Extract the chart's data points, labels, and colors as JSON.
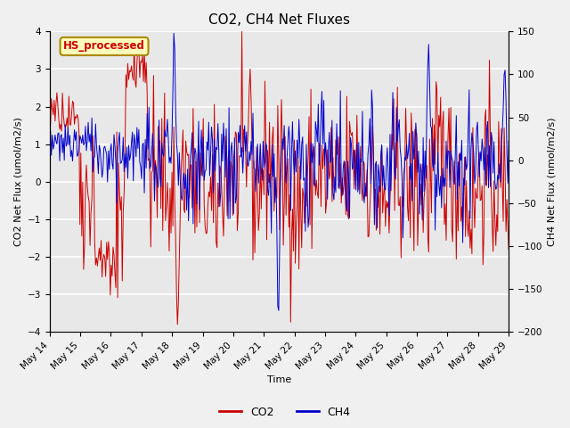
{
  "title": "CO2, CH4 Net Fluxes",
  "xlabel": "Time",
  "ylabel_left": "CO2 Net Flux (umol/m2/s)",
  "ylabel_right": "CH4 Net Flux (nmol/m2/s)",
  "ylim_left": [
    -4.0,
    4.0
  ],
  "ylim_right": [
    -200,
    150
  ],
  "yticks_left": [
    -4.0,
    -3.0,
    -2.0,
    -1.0,
    0.0,
    1.0,
    2.0,
    3.0,
    4.0
  ],
  "yticks_right": [
    -200,
    -150,
    -100,
    -50,
    0,
    50,
    100,
    150
  ],
  "x_tick_labels": [
    "May 14",
    "May 15",
    "May 16",
    "May 17",
    "May 18",
    "May 19",
    "May 20",
    "May 21",
    "May 22",
    "May 23",
    "May 24",
    "May 25",
    "May 26",
    "May 27",
    "May 28",
    "May 29"
  ],
  "co2_color": "#CC0000",
  "ch4_color": "#0000CC",
  "label_box_text": "HS_processed",
  "label_box_bg": "#FFFFBB",
  "label_box_border": "#AA8800",
  "legend_co2": "CO2",
  "legend_ch4": "CH4",
  "fig_bg": "#F0F0F0",
  "plot_bg": "#E8E8E8",
  "grid_color": "#FFFFFF",
  "title_fontsize": 11,
  "axis_label_fontsize": 8,
  "tick_label_fontsize": 7.5,
  "legend_fontsize": 9,
  "n_points": 500
}
